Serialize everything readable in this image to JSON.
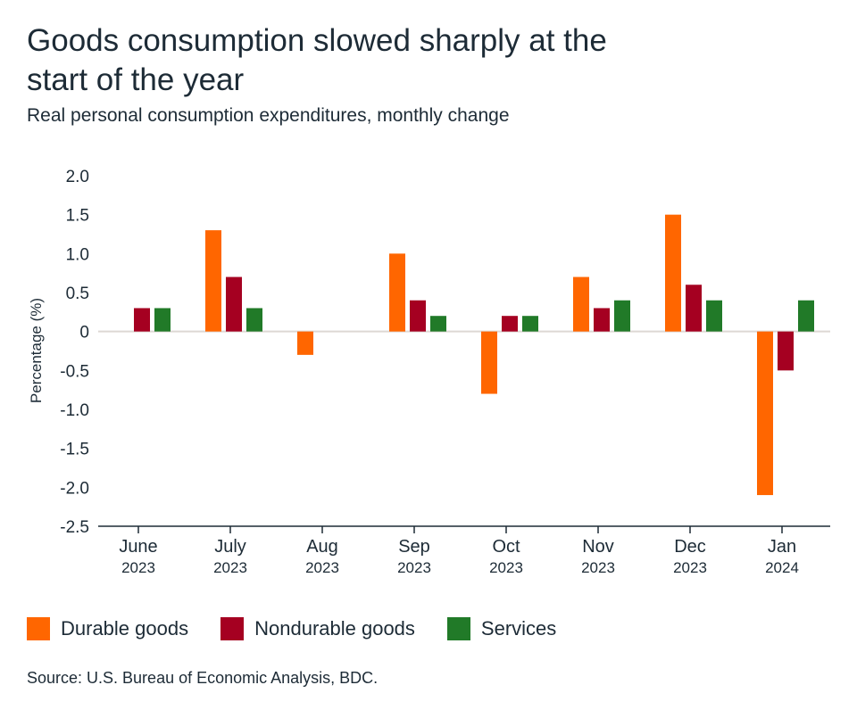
{
  "title": "Goods consumption slowed sharply at the start of the year",
  "subtitle": "Real personal consumption expenditures, monthly change",
  "source": "Source: U.S. Bureau of Economic Analysis, BDC.",
  "chart_data": {
    "type": "bar",
    "ylabel": "Percentage (%)",
    "xlabel": "",
    "ylim": [
      -2.5,
      2.0
    ],
    "yticks": [
      "2.0",
      "1.5",
      "1.0",
      "0.5",
      "0",
      "-0.5",
      "-1.0",
      "-1.5",
      "-2.0",
      "-2.5"
    ],
    "categories": [
      {
        "month": "June",
        "year": "2023"
      },
      {
        "month": "July",
        "year": "2023"
      },
      {
        "month": "Aug",
        "year": "2023"
      },
      {
        "month": "Sep",
        "year": "2023"
      },
      {
        "month": "Oct",
        "year": "2023"
      },
      {
        "month": "Nov",
        "year": "2023"
      },
      {
        "month": "Dec",
        "year": "2023"
      },
      {
        "month": "Jan",
        "year": "2024"
      }
    ],
    "series": [
      {
        "name": "Durable goods",
        "color": "#FF6600",
        "values": [
          0,
          1.3,
          -0.3,
          1.0,
          -0.8,
          0.7,
          1.5,
          -2.1
        ]
      },
      {
        "name": "Nondurable goods",
        "color": "#A50021",
        "values": [
          0.3,
          0.7,
          0,
          0.4,
          0.2,
          0.3,
          0.6,
          -0.5
        ]
      },
      {
        "name": "Services",
        "color": "#217A28",
        "values": [
          0.3,
          0.3,
          0,
          0.2,
          0.2,
          0.4,
          0.4,
          0.4
        ]
      }
    ],
    "grid": false,
    "legend_position": "bottom-left"
  }
}
